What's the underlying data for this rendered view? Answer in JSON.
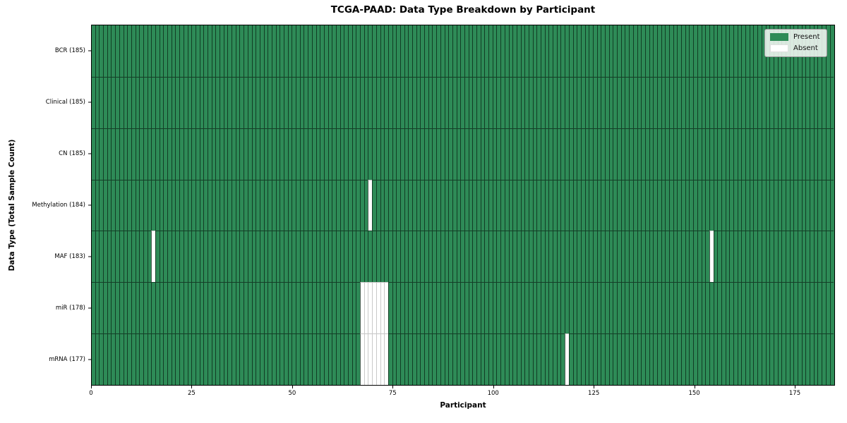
{
  "chart_data": {
    "type": "heatmap",
    "title": "TCGA-PAAD: Data Type Breakdown by Participant",
    "xlabel": "Participant",
    "ylabel": "Data Type (Total Sample Count)",
    "xlim": [
      0,
      185
    ],
    "x_ticks": [
      0,
      25,
      50,
      75,
      100,
      125,
      150,
      175
    ],
    "n_participants": 185,
    "grid": false,
    "colors": {
      "present": "#2e8b57",
      "absent": "#ffffff",
      "cell_edge_dark": "rgba(8,32,18,0.72)",
      "cell_edge_light": "#c9c9c9",
      "frame": "#000000"
    },
    "legend": {
      "position": "upper-right",
      "entries": [
        {
          "label": "Present",
          "color": "#2e8b57"
        },
        {
          "label": "Absent",
          "color": "#ffffff"
        }
      ]
    },
    "rows": [
      {
        "label": "BCR (185)",
        "data_type": "BCR",
        "present_count": 185,
        "absent_participants": []
      },
      {
        "label": "Clinical (185)",
        "data_type": "Clinical",
        "present_count": 185,
        "absent_participants": []
      },
      {
        "label": "CN (185)",
        "data_type": "CN",
        "present_count": 185,
        "absent_participants": []
      },
      {
        "label": "Methylation (184)",
        "data_type": "Methylation",
        "present_count": 184,
        "absent_participants": [
          69
        ]
      },
      {
        "label": "MAF (183)",
        "data_type": "MAF",
        "present_count": 183,
        "absent_participants": [
          15,
          154
        ]
      },
      {
        "label": "miR (178)",
        "data_type": "miR",
        "present_count": 178,
        "absent_participants": [
          67,
          68,
          69,
          70,
          71,
          72,
          73
        ]
      },
      {
        "label": "mRNA (177)",
        "data_type": "mRNA",
        "present_count": 177,
        "absent_participants": [
          67,
          68,
          69,
          70,
          71,
          72,
          73,
          118
        ]
      }
    ]
  },
  "layout_note": {}
}
